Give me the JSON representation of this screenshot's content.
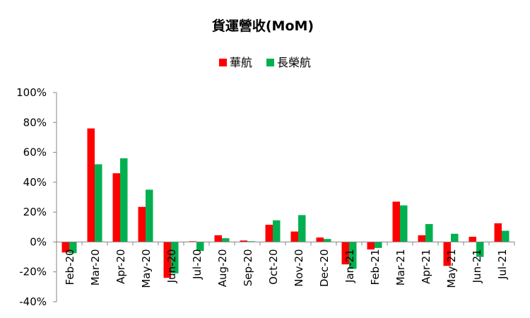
{
  "chart_data": {
    "type": "bar",
    "title": "貨運營收(MoM)",
    "xlabel": "",
    "ylabel": "",
    "ylim": [
      -40,
      100
    ],
    "ytick_step": 20,
    "ytick_suffix": "%",
    "grid": false,
    "legend_position": "top-center",
    "categories": [
      "Feb-20",
      "Mar-20",
      "Apr-20",
      "May-20",
      "Jun-20",
      "Jul-20",
      "Aug-20",
      "Sep-20",
      "Oct-20",
      "Nov-20",
      "Dec-20",
      "Jan-21",
      "Feb-21",
      "Mar-21",
      "Apr-21",
      "May-21",
      "Jun-21",
      "Jul-21"
    ],
    "series": [
      {
        "name": "華航",
        "color": "#ff0000",
        "values": [
          -7,
          76,
          46,
          23.5,
          -24,
          0.5,
          4.5,
          1,
          11.5,
          7,
          3,
          -15,
          -5,
          27,
          4.5,
          -16,
          3.5,
          12.5
        ]
      },
      {
        "name": "長榮航",
        "color": "#00b050",
        "values": [
          -7.5,
          52,
          56,
          35,
          -21,
          -6,
          2.5,
          0.5,
          14.5,
          18,
          2,
          -18,
          -4,
          24.5,
          12,
          5.5,
          -10,
          7.5
        ]
      }
    ]
  }
}
